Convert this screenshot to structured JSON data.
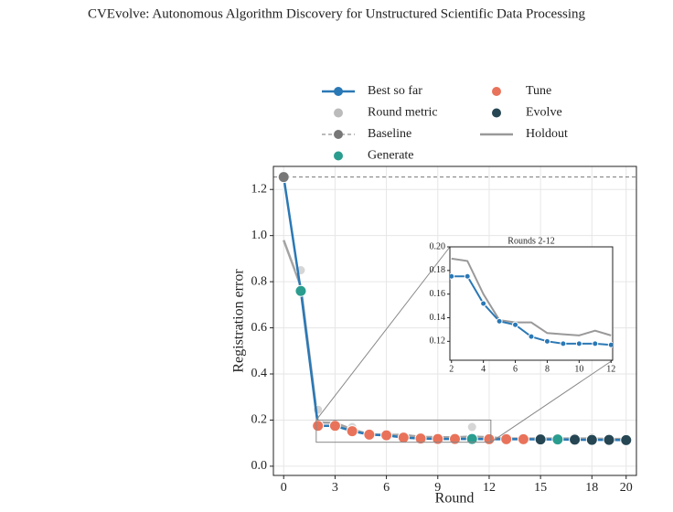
{
  "chart_data": {
    "type": "line",
    "title": "CVEvolve: Autonomous Algorithm Discovery for Unstructured Scientific Data Processing",
    "x_label": "Round",
    "y_label": "Registration error",
    "xlim": [
      -0.6,
      20.6
    ],
    "ylim": [
      -0.04,
      1.3
    ],
    "xticks": [
      0,
      3,
      6,
      9,
      12,
      15,
      18,
      20
    ],
    "yticks": [
      {
        "value": 0,
        "label": "0.0"
      },
      0.2,
      0.4,
      0.6,
      0.8,
      {
        "value": 1,
        "label": "1.0"
      },
      1.2
    ],
    "grid": true,
    "series": [
      {
        "name": "Best so far",
        "kind": "line",
        "color": "#2a78b5",
        "x": [
          0,
          1,
          2,
          3,
          4,
          5,
          6,
          7,
          8,
          9,
          10,
          11,
          12,
          13,
          14,
          15,
          16,
          17,
          18,
          19,
          20
        ],
        "values": [
          1.254,
          0.76,
          0.175,
          0.175,
          0.152,
          0.137,
          0.134,
          0.124,
          0.12,
          0.118,
          0.118,
          0.118,
          0.117,
          0.117,
          0.117,
          0.116,
          0.116,
          0.115,
          0.114,
          0.114,
          0.113
        ]
      },
      {
        "name": "Round metric",
        "kind": "points",
        "color": "#bbbbbb",
        "x": [
          1,
          2,
          3,
          4,
          5,
          6,
          7,
          8,
          9,
          10,
          11,
          12,
          13,
          14,
          15,
          16,
          17,
          18,
          19,
          20
        ],
        "values": [
          0.85,
          0.245,
          0.18,
          0.17,
          0.14,
          0.13,
          0.13,
          0.125,
          0.125,
          0.125,
          0.17,
          0.12,
          0.12,
          0.12,
          0.12,
          0.125,
          0.125,
          0.125,
          0.12,
          0.115
        ]
      },
      {
        "name": "Baseline",
        "kind": "baseline",
        "color": "#777777",
        "x": [
          0
        ],
        "values": [
          1.254
        ]
      },
      {
        "name": "Generate",
        "kind": "points",
        "color": "#2a9d8f",
        "x": [
          1,
          11,
          16
        ],
        "values": [
          0.76,
          0.118,
          0.116
        ]
      },
      {
        "name": "Tune",
        "kind": "points",
        "color": "#e8735a",
        "x": [
          2,
          3,
          4,
          5,
          6,
          7,
          8,
          9,
          10,
          12,
          13,
          14
        ],
        "values": [
          0.175,
          0.175,
          0.152,
          0.137,
          0.134,
          0.124,
          0.12,
          0.118,
          0.118,
          0.117,
          0.117,
          0.117
        ]
      },
      {
        "name": "Evolve",
        "kind": "points",
        "color": "#264653",
        "x": [
          15,
          17,
          18,
          19,
          20
        ],
        "values": [
          0.116,
          0.115,
          0.114,
          0.114,
          0.113
        ]
      },
      {
        "name": "Holdout",
        "kind": "holdout",
        "color": "#999999",
        "x": [
          0,
          1,
          2,
          3,
          4,
          5,
          6,
          7,
          8,
          9,
          10,
          11,
          12,
          13,
          14,
          15,
          16,
          17,
          18,
          19,
          20
        ],
        "values": [
          0.98,
          0.78,
          0.19,
          0.188,
          0.16,
          0.138,
          0.136,
          0.136,
          0.127,
          0.126,
          0.125,
          0.129,
          0.125,
          0.12,
          0.12,
          0.12,
          0.12,
          0.12,
          0.12,
          0.118,
          0.118
        ]
      }
    ],
    "inset": {
      "title": "Rounds 2-12",
      "xlim": [
        1.9,
        12.1
      ],
      "ylim": [
        0.104,
        0.2
      ],
      "xticks": [
        2,
        4,
        6,
        8,
        10,
        12
      ],
      "yticks": [
        0.12,
        0.14,
        0.16,
        0.18,
        {
          "value": 0.2,
          "label": "0.20"
        }
      ]
    }
  }
}
